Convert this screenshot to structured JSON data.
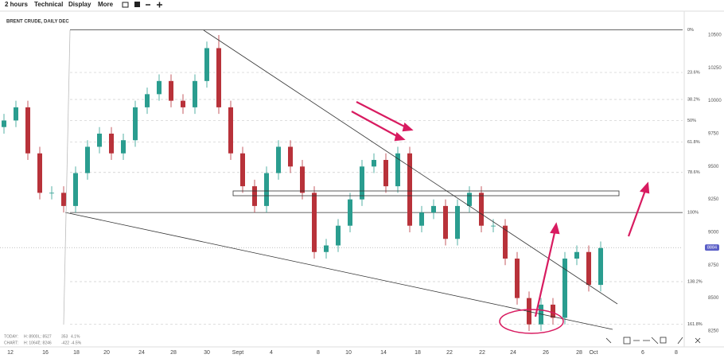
{
  "toolbar": [
    "2 hours",
    "Technical",
    "Display",
    "More"
  ],
  "chart_data": {
    "type": "candlestick",
    "title": "BRENT CRUDE, DAILY DEC",
    "up_color": "#2a9d8f",
    "down_color": "#b8323a",
    "ylim": [
      8150,
      10660
    ],
    "yticks": [
      10500,
      10250,
      10000,
      9750,
      9500,
      9250,
      9000,
      8750,
      8500,
      8250
    ],
    "x_labels": [
      "12",
      "16",
      "18",
      "20",
      "24",
      "28",
      "30",
      "Sept",
      "4",
      "8",
      "10",
      "14",
      "18",
      "22",
      "22",
      "24",
      "26",
      "28",
      "Oct",
      "6",
      "8"
    ],
    "fib_levels": [
      {
        "value": 10540,
        "label": "0%"
      },
      {
        "value": 10215,
        "label": "23.6%"
      },
      {
        "value": 10010,
        "label": "38.2%"
      },
      {
        "value": 9850,
        "label": "50%"
      },
      {
        "value": 9685,
        "label": "61.8%"
      },
      {
        "value": 9455,
        "label": "78.6%"
      },
      {
        "value": 9150,
        "label": "100%"
      },
      {
        "value": 8625,
        "label": "138.2%"
      },
      {
        "value": 8300,
        "label": "161.8%"
      }
    ],
    "last_price": 8884,
    "open": [
      9800,
      9850,
      9950,
      9600,
      9300,
      9300,
      9200,
      9450,
      9650,
      9750,
      9600,
      9700,
      9950,
      10050,
      10150,
      10000,
      9950,
      10150,
      10400,
      9950,
      9600,
      9350,
      9200,
      9450,
      9650,
      9500,
      9300,
      8850,
      8900,
      9050,
      9250,
      9500,
      9550,
      9350,
      9600,
      9050,
      9150,
      9200,
      8950,
      9200,
      9300,
      9050,
      9050,
      8800,
      8500,
      8300,
      8450,
      8350,
      8800,
      8850,
      8600
    ],
    "high": [
      9900,
      10000,
      10000,
      9650,
      9350,
      9350,
      9500,
      9700,
      9800,
      9800,
      9750,
      10000,
      10100,
      10200,
      10200,
      10050,
      10200,
      10450,
      10500,
      10000,
      9650,
      9400,
      9500,
      9700,
      9700,
      9550,
      9350,
      8950,
      9100,
      9300,
      9550,
      9600,
      9600,
      9650,
      9650,
      9200,
      9250,
      9250,
      9250,
      9350,
      9350,
      9100,
      9100,
      8850,
      8550,
      8500,
      8500,
      8850,
      8900,
      8900,
      8930
    ],
    "low": [
      9750,
      9800,
      9550,
      9250,
      9250,
      9150,
      9150,
      9400,
      9600,
      9550,
      9550,
      9650,
      9900,
      10000,
      9950,
      9900,
      9900,
      10100,
      9900,
      9550,
      9300,
      9150,
      9150,
      9400,
      9450,
      9250,
      8800,
      8800,
      8850,
      9000,
      9200,
      9450,
      9300,
      9300,
      9000,
      9000,
      9100,
      8900,
      8900,
      9150,
      9000,
      9000,
      8750,
      8450,
      8250,
      8250,
      8300,
      8300,
      8750,
      8550,
      8550
    ],
    "close": [
      9850,
      9950,
      9600,
      9300,
      9300,
      9200,
      9450,
      9650,
      9750,
      9600,
      9700,
      9950,
      10050,
      10150,
      10000,
      9950,
      10150,
      10400,
      9950,
      9600,
      9350,
      9200,
      9450,
      9650,
      9500,
      9300,
      8850,
      8900,
      9050,
      9250,
      9500,
      9550,
      9350,
      9600,
      9050,
      9150,
      9200,
      8950,
      9200,
      9300,
      9050,
      9050,
      8800,
      8500,
      8300,
      8450,
      8350,
      8800,
      8850,
      8600,
      8880
    ]
  },
  "info": {
    "today": [
      "TODAY:",
      "H: 8900",
      "L: 8527",
      "353",
      "4.1%"
    ],
    "chart": [
      "CHART:",
      "H: 10647",
      "L: 8246",
      "-422",
      "-4.5%"
    ]
  }
}
